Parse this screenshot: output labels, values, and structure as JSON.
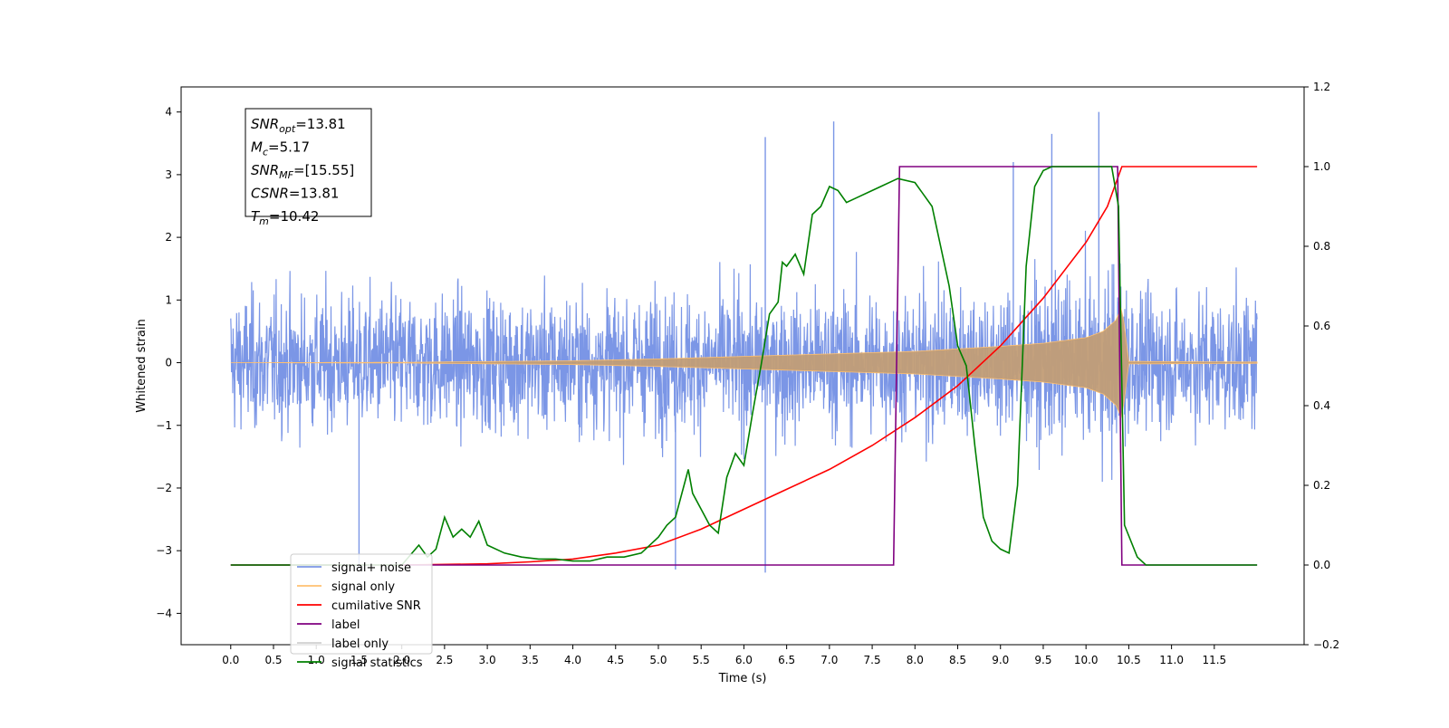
{
  "chart_data": {
    "type": "line",
    "xlabel": "Time (s)",
    "ylabel": "Whitened strain",
    "xlim": [
      -0.58,
      12.55
    ],
    "ylim": [
      -4.5,
      4.4
    ],
    "y2lim": [
      -0.2,
      1.2
    ],
    "x_ticks": [
      "0.0",
      "0.5",
      "1.0",
      "1.5",
      "2.0",
      "2.5",
      "3.0",
      "3.5",
      "4.0",
      "4.5",
      "5.0",
      "5.5",
      "6.0",
      "6.5",
      "7.0",
      "7.5",
      "8.0",
      "8.5",
      "9.0",
      "9.5",
      "10.0",
      "10.5",
      "11.0",
      "11.5"
    ],
    "y_ticks": [
      "4",
      "3",
      "2",
      "1",
      "0",
      "−1",
      "−2",
      "−3",
      "−4"
    ],
    "y2_ticks": [
      "1.2",
      "1.0",
      "0.8",
      "0.6",
      "0.4",
      "0.2",
      "0.0",
      "−0.2"
    ],
    "grid": false,
    "legend_position": "lower-left",
    "legend": [
      {
        "label": "signal+ noise",
        "color": "#7b96e6"
      },
      {
        "label": "signal only",
        "color": "#ffc070"
      },
      {
        "label": "cumilative SNR",
        "color": "#ff0000"
      },
      {
        "label": "label",
        "color": "#800080"
      },
      {
        "label": "label only",
        "color": "#d0d0d0"
      },
      {
        "label": "signal statistics",
        "color": "#008000"
      }
    ],
    "annotation": [
      {
        "main": "SNR",
        "sub": "opt",
        "rest": "=13.81"
      },
      {
        "main": "M",
        "sub": "c",
        "rest": "=5.17"
      },
      {
        "main": "SNR",
        "sub": "MF",
        "rest": "=[15.55]"
      },
      {
        "main": "CSNR",
        "sub": "",
        "rest": "=13.81"
      },
      {
        "main": "T",
        "sub": "m",
        "rest": "=10.42"
      }
    ],
    "series": [
      {
        "name": "signal+ noise",
        "axis": "left",
        "x_range": [
          0.0,
          12.0
        ],
        "typical_band": [
          -1.8,
          1.8
        ],
        "notable_peaks": [
          [
            7.05,
            3.85
          ],
          [
            6.25,
            3.6
          ],
          [
            9.6,
            3.65
          ],
          [
            10.15,
            4.0
          ],
          [
            9.15,
            3.2
          ],
          [
            6.25,
            -3.35
          ],
          [
            1.5,
            -3.3
          ],
          [
            5.2,
            -3.3
          ]
        ]
      },
      {
        "name": "signal only",
        "axis": "left",
        "x": [
          0.0,
          2.0,
          4.0,
          5.0,
          6.0,
          7.0,
          8.0,
          9.0,
          9.5,
          10.0,
          10.2,
          10.35,
          10.42,
          10.5,
          12.0
        ],
        "envelope": [
          0.0,
          0.005,
          0.03,
          0.06,
          0.1,
          0.14,
          0.18,
          0.26,
          0.31,
          0.4,
          0.5,
          0.68,
          0.9,
          0.02,
          0.01
        ]
      },
      {
        "name": "cumilative SNR",
        "axis": "right",
        "x": [
          0.0,
          2.0,
          3.0,
          3.5,
          4.0,
          4.5,
          5.0,
          5.5,
          6.0,
          6.5,
          7.0,
          7.5,
          8.0,
          8.5,
          9.0,
          9.5,
          10.0,
          10.25,
          10.42,
          12.0
        ],
        "y": [
          0.0,
          0.0,
          0.003,
          0.008,
          0.015,
          0.03,
          0.05,
          0.09,
          0.14,
          0.19,
          0.24,
          0.3,
          0.37,
          0.45,
          0.55,
          0.67,
          0.81,
          0.9,
          1.0,
          1.0
        ]
      },
      {
        "name": "label",
        "axis": "right",
        "x": [
          0.0,
          7.75,
          7.82,
          10.37,
          10.42,
          12.0
        ],
        "y": [
          0.0,
          0.0,
          1.0,
          1.0,
          0.0,
          0.0
        ]
      },
      {
        "name": "signal statistics",
        "axis": "right",
        "x": [
          0.0,
          2.0,
          2.2,
          2.3,
          2.4,
          2.5,
          2.6,
          2.7,
          2.8,
          2.9,
          3.0,
          3.2,
          3.4,
          3.6,
          3.8,
          4.0,
          4.2,
          4.4,
          4.6,
          4.8,
          5.0,
          5.1,
          5.2,
          5.3,
          5.35,
          5.4,
          5.5,
          5.6,
          5.7,
          5.8,
          5.9,
          6.0,
          6.1,
          6.2,
          6.3,
          6.4,
          6.45,
          6.5,
          6.6,
          6.7,
          6.8,
          6.9,
          7.0,
          7.1,
          7.2,
          7.3,
          7.5,
          7.6,
          7.8,
          8.0,
          8.2,
          8.4,
          8.5,
          8.6,
          8.7,
          8.8,
          8.9,
          9.0,
          9.1,
          9.2,
          9.3,
          9.4,
          9.5,
          9.6,
          10.0,
          10.3,
          10.38,
          10.45,
          10.6,
          10.7,
          12.0
        ],
        "y": [
          0.0,
          0.0,
          0.05,
          0.02,
          0.04,
          0.12,
          0.07,
          0.09,
          0.07,
          0.11,
          0.05,
          0.03,
          0.02,
          0.015,
          0.015,
          0.01,
          0.01,
          0.02,
          0.02,
          0.03,
          0.07,
          0.1,
          0.12,
          0.2,
          0.24,
          0.18,
          0.14,
          0.1,
          0.08,
          0.22,
          0.28,
          0.25,
          0.38,
          0.5,
          0.63,
          0.66,
          0.76,
          0.75,
          0.78,
          0.73,
          0.88,
          0.9,
          0.95,
          0.94,
          0.91,
          0.92,
          0.94,
          0.95,
          0.97,
          0.96,
          0.9,
          0.7,
          0.55,
          0.5,
          0.3,
          0.12,
          0.06,
          0.04,
          0.03,
          0.2,
          0.75,
          0.95,
          0.99,
          1.0,
          1.0,
          1.0,
          0.9,
          0.1,
          0.02,
          0.0,
          0.0
        ]
      }
    ]
  }
}
